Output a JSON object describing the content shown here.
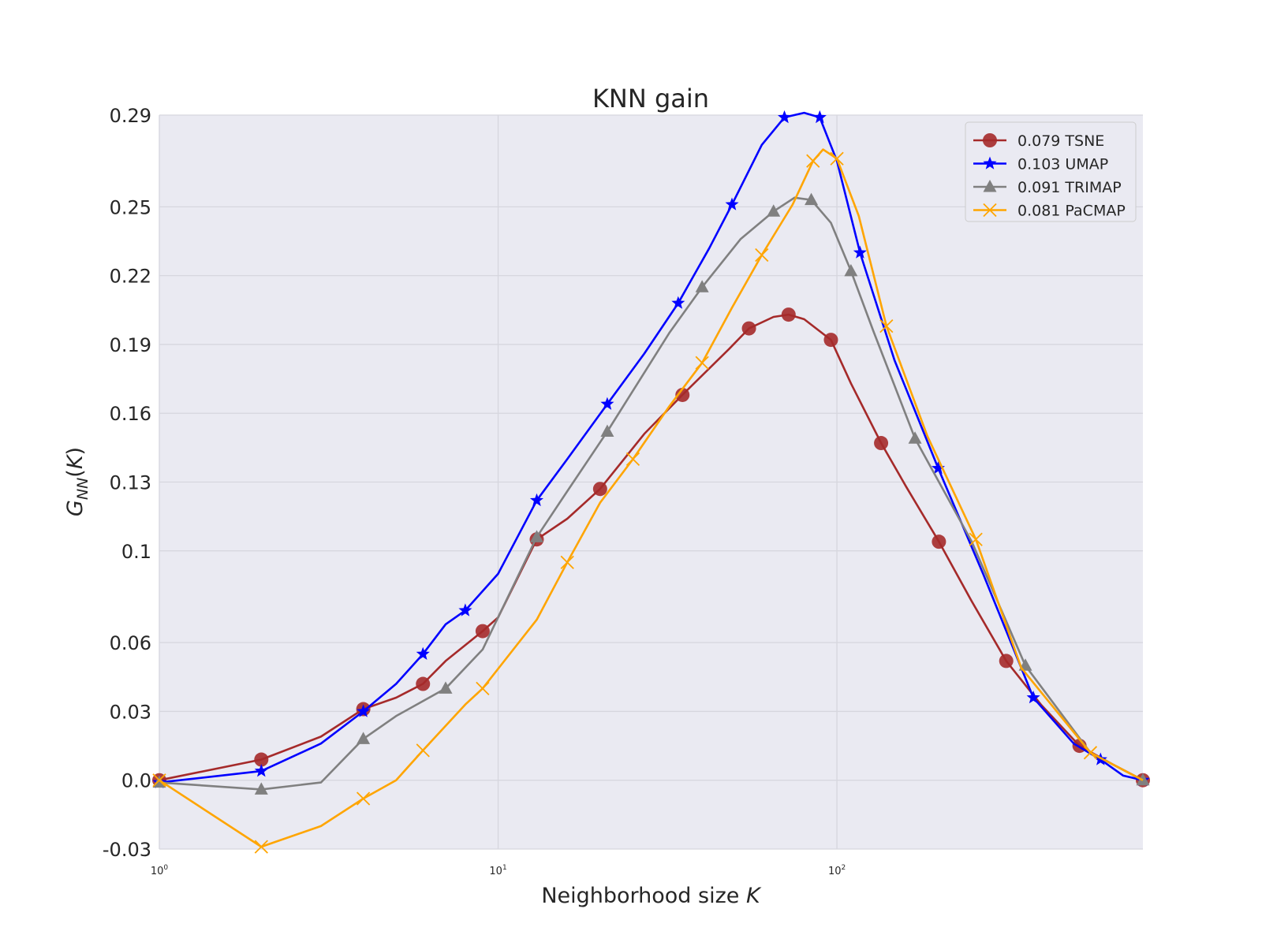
{
  "chart_data": {
    "type": "line",
    "title": "KNN gain",
    "xlabel": "Neighborhood size K",
    "ylabel": "G_NN(K)",
    "xscale": "log",
    "xlim": [
      1,
      800
    ],
    "ylim": [
      -0.03,
      0.29
    ],
    "x_tick_labels": [
      {
        "value": 1,
        "base": "10",
        "exp": "0"
      },
      {
        "value": 10,
        "base": "10",
        "exp": "1"
      },
      {
        "value": 100,
        "base": "10",
        "exp": "2"
      }
    ],
    "y_ticks": [
      -0.03,
      0.0,
      0.03,
      0.06,
      0.1,
      0.13,
      0.16,
      0.19,
      0.22,
      0.25,
      0.29
    ],
    "y_tick_labels": [
      "-0.03",
      "0.0",
      "0.03",
      "0.06",
      "0.1",
      "0.13",
      "0.16",
      "0.19",
      "0.22",
      "0.25",
      "0.29"
    ],
    "grid": true,
    "legend_position": "top-right",
    "series": [
      {
        "name": "0.079 TSNE",
        "color": "#a52a2a",
        "marker": "circle",
        "x": [
          1,
          2,
          3,
          4,
          5,
          6,
          7,
          9,
          10,
          13,
          16,
          20,
          27,
          35,
          48,
          55,
          65,
          72,
          80,
          96,
          110,
          135,
          160,
          200,
          250,
          316,
          400,
          520,
          650,
          800
        ],
        "y": [
          0.0,
          0.009,
          0.019,
          0.031,
          0.036,
          0.042,
          0.052,
          0.065,
          0.071,
          0.105,
          0.114,
          0.127,
          0.151,
          0.168,
          0.188,
          0.197,
          0.202,
          0.203,
          0.201,
          0.192,
          0.173,
          0.147,
          0.128,
          0.104,
          0.078,
          0.052,
          0.033,
          0.015,
          0.007,
          0.0
        ]
      },
      {
        "name": "0.103 UMAP",
        "color": "#0000ff",
        "marker": "star",
        "x": [
          1,
          2,
          3,
          4,
          5,
          6,
          7,
          8,
          10,
          13,
          16,
          21,
          27,
          34,
          42,
          49,
          60,
          70,
          80,
          89,
          100,
          117,
          148,
          199,
          270,
          380,
          500,
          600,
          700,
          800
        ],
        "y": [
          -0.001,
          0.004,
          0.016,
          0.03,
          0.042,
          0.055,
          0.068,
          0.074,
          0.09,
          0.122,
          0.14,
          0.164,
          0.186,
          0.208,
          0.232,
          0.251,
          0.277,
          0.289,
          0.291,
          0.289,
          0.27,
          0.23,
          0.183,
          0.136,
          0.09,
          0.036,
          0.016,
          0.009,
          0.002,
          0.0
        ]
      },
      {
        "name": "0.091 TRIMAP",
        "color": "#808080",
        "marker": "triangle",
        "x": [
          1,
          2,
          3,
          4,
          5,
          7,
          9,
          13,
          16,
          21,
          32,
          40,
          52,
          65,
          75,
          84,
          96,
          110,
          128,
          170,
          250,
          360,
          560,
          800
        ],
        "y": [
          -0.001,
          -0.004,
          -0.001,
          0.018,
          0.028,
          0.04,
          0.057,
          0.106,
          0.126,
          0.152,
          0.195,
          0.215,
          0.236,
          0.248,
          0.254,
          0.253,
          0.243,
          0.222,
          0.196,
          0.149,
          0.104,
          0.05,
          0.012,
          0.0
        ]
      },
      {
        "name": "0.081 PaCMAP",
        "color": "#ffa500",
        "marker": "x",
        "x": [
          1,
          2,
          3,
          4,
          5,
          6,
          8,
          9,
          13,
          16,
          20,
          25,
          32,
          40,
          49,
          60,
          74,
          85,
          91,
          100,
          116,
          140,
          185,
          257,
          350,
          560,
          800
        ],
        "y": [
          0.0,
          -0.029,
          -0.02,
          -0.008,
          0.0,
          0.013,
          0.033,
          0.04,
          0.07,
          0.095,
          0.121,
          0.14,
          0.163,
          0.182,
          0.206,
          0.229,
          0.251,
          0.27,
          0.275,
          0.271,
          0.246,
          0.198,
          0.15,
          0.105,
          0.049,
          0.012,
          0.0
        ]
      }
    ]
  }
}
